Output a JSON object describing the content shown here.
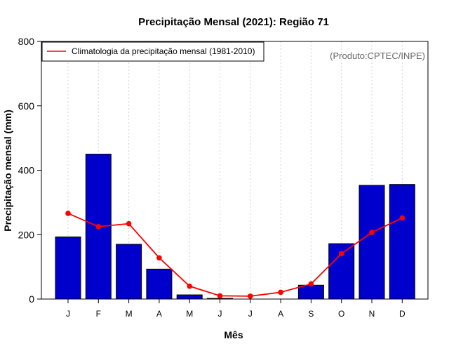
{
  "chart_data": {
    "type": "bar",
    "title": "Precipitação Mensal (2021): Região 71",
    "xlabel": "Mês",
    "ylabel": "Precipitação mensal (mm)",
    "ylim": [
      0,
      800
    ],
    "yticks": [
      0,
      200,
      400,
      600,
      800
    ],
    "categories": [
      "J",
      "F",
      "M",
      "A",
      "M",
      "J",
      "J",
      "A",
      "S",
      "O",
      "N",
      "D"
    ],
    "series": [
      {
        "name": "Precipitação mensal 2021",
        "type": "bar",
        "color": "#0000cd",
        "values": [
          193,
          450,
          170,
          93,
          13,
          2,
          0,
          0,
          43,
          172,
          353,
          356
        ]
      },
      {
        "name": "Climatologia da precipitação mensal (1981-2010)",
        "type": "line",
        "color": "#ff0000",
        "values": [
          266,
          225,
          234,
          128,
          40,
          10,
          9,
          21,
          47,
          141,
          207,
          252
        ]
      }
    ],
    "legend": {
      "position": "top-left",
      "label": "Climatologia da precipitação mensal (1981-2010)"
    },
    "annotation": "(Produto:CPTEC/INPE)",
    "grid": "vertical dotted"
  }
}
